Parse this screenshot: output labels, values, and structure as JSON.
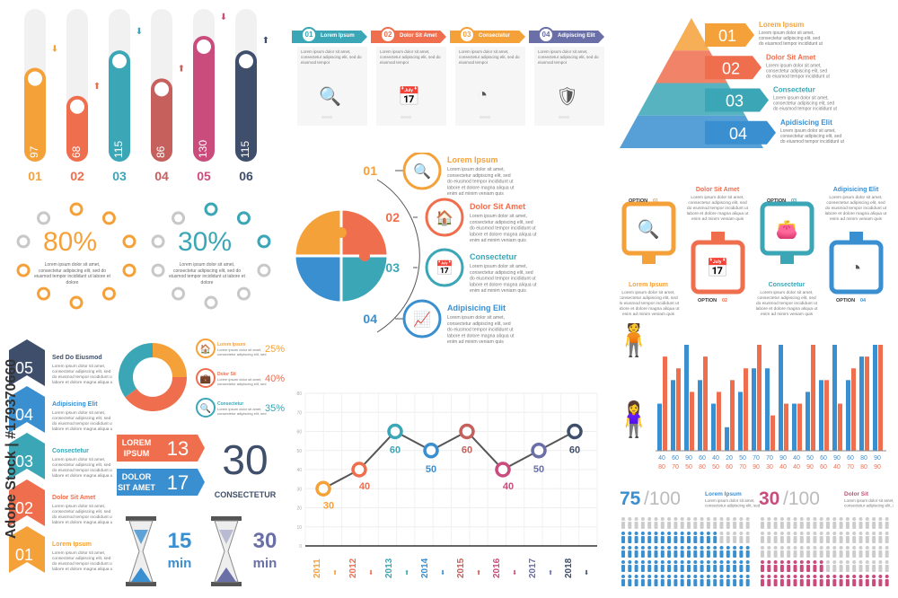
{
  "colors": {
    "orange": "#F5A13A",
    "coral": "#EF6E4E",
    "teal": "#3BA6B6",
    "rose": "#C5605C",
    "pink": "#C94C7C",
    "navy": "#3F4F6B",
    "blue": "#3A8FD0",
    "purple": "#6A6FA8",
    "gray": "#c8c8c8"
  },
  "pill_chart": {
    "values": [
      "97",
      "68",
      "115",
      "86",
      "130",
      "115"
    ],
    "labels": [
      "01",
      "02",
      "03",
      "04",
      "05",
      "06"
    ]
  },
  "steps": [
    {
      "num": "01",
      "title": "Lorem Ipsum"
    },
    {
      "num": "02",
      "title": "Dolor Sit Amet"
    },
    {
      "num": "03",
      "title": "Consectetur"
    },
    {
      "num": "04",
      "title": "Adipiscing Elit"
    }
  ],
  "pyramid": [
    {
      "num": "01",
      "title": "Lorem Ipsum"
    },
    {
      "num": "02",
      "title": "Dolor Sit Amet"
    },
    {
      "num": "03",
      "title": "Consectetur"
    },
    {
      "num": "04",
      "title": "Apidisicing Elit"
    }
  ],
  "lorem_short": "Lorem ipsum dolor sit amet, consectetur adipiscing elit, sed do eiusmod tempor",
  "lorem_long": "Lorem ipsum dolor sit amet, consectetur adipiscing elit, sed do eiusmod tempor incididunt ut labore et dolore magna aliqua ut enim ad minim veniam quis",
  "percent_rings": [
    {
      "value": "80%",
      "text": "Lorem ipsum dolor sit amet, consectetur adipiscing elit, sed do eiusmod tempor incididunt ut labore et dolore"
    },
    {
      "value": "30%",
      "text": "Lorem ipsum dolor sit amet, consectetur adipiscing elit, sed do eiusmod tempor incididunt ut labore et dolore"
    }
  ],
  "puzzle": [
    {
      "num": "01",
      "title": "Lorem Ipsum"
    },
    {
      "num": "02",
      "title": "Dolor Sit Amet"
    },
    {
      "num": "03",
      "title": "Consectetur"
    },
    {
      "num": "04",
      "title": "Adipisicing Elit"
    }
  ],
  "options": [
    {
      "label": "OPTION",
      "num": "01",
      "title": "Lorem Ipsum"
    },
    {
      "label": "OPTION",
      "num": "02",
      "title": "Dolor Sit Amet"
    },
    {
      "label": "OPTION",
      "num": "03",
      "title": "Consectetur"
    },
    {
      "label": "OPTION",
      "num": "04",
      "title": "Adipisicing Elit"
    }
  ],
  "arrow_list": [
    {
      "num": "05",
      "title": "Sed Do Eiusmod"
    },
    {
      "num": "04",
      "title": "Adipisicing Elit"
    },
    {
      "num": "03",
      "title": "Consectetur"
    },
    {
      "num": "02",
      "title": "Dolor Sit Amet"
    },
    {
      "num": "01",
      "title": "Lorem Ipsum"
    }
  ],
  "donut": {
    "items": [
      {
        "title": "Lorem Ipsum",
        "pct": "25%"
      },
      {
        "title": "Dolor Sit",
        "pct": "40%"
      },
      {
        "title": "Consectetur",
        "pct": "35%"
      }
    ],
    "values": [
      25,
      40,
      35
    ]
  },
  "badges": [
    {
      "l1": "LOREM",
      "l2": "IPSUM",
      "num": "13"
    },
    {
      "l1": "DOLOR",
      "l2": "SIT AMET",
      "num": "17"
    }
  ],
  "big_number": {
    "value": "30",
    "label": "CONSECTETUR"
  },
  "hourglass": [
    {
      "value": "15",
      "unit": "min"
    },
    {
      "value": "30",
      "unit": "min"
    }
  ],
  "chart_data": {
    "type": "line",
    "x": [
      "2011",
      "2012",
      "2013",
      "2014",
      "2015",
      "2016",
      "2017",
      "2018"
    ],
    "values": [
      30,
      40,
      60,
      50,
      60,
      40,
      50,
      60
    ],
    "ylim": [
      0,
      80
    ],
    "yticks": [
      "0",
      "10",
      "20",
      "30",
      "40",
      "50",
      "60",
      "70",
      "80"
    ]
  },
  "paired_bars": {
    "top_labels": [
      "40",
      "60",
      "90",
      "60",
      "40",
      "20",
      "50",
      "70",
      "70",
      "90",
      "40",
      "50",
      "60",
      "90",
      "60",
      "80",
      "90"
    ],
    "bottom_labels": [
      "80",
      "70",
      "50",
      "80",
      "50",
      "60",
      "70",
      "90",
      "30",
      "40",
      "40",
      "90",
      "60",
      "40",
      "70",
      "80",
      "90"
    ],
    "series_a": [
      40,
      60,
      90,
      60,
      40,
      20,
      50,
      70,
      70,
      90,
      40,
      50,
      60,
      90,
      60,
      80,
      90
    ],
    "series_b": [
      80,
      70,
      50,
      80,
      50,
      60,
      70,
      90,
      30,
      40,
      40,
      90,
      60,
      40,
      70,
      80,
      90
    ]
  },
  "people": [
    {
      "value": "75",
      "total": "/100",
      "title": "Lorem Ipsum",
      "count": 75
    },
    {
      "value": "30",
      "total": "/100",
      "title": "Dolor Sit",
      "count": 30
    }
  ],
  "watermark": "Adobe Stock | #179370660"
}
